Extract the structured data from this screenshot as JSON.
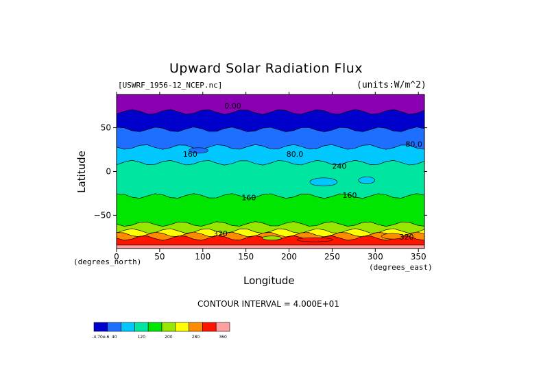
{
  "chart_data": {
    "type": "heatmap",
    "title": "Upward Solar Radiation Flux",
    "source_label": "[USWRF_1956-12_NCEP.nc]",
    "units_label": "(units:W/m^2)",
    "xlabel": "Longitude",
    "ylabel": "Latitude",
    "x_unit_label": "(degrees_east)",
    "y_unit_label": "(degrees_north)",
    "xlim": [
      0,
      357
    ],
    "ylim": [
      -88,
      88
    ],
    "xticks": [
      0,
      50,
      100,
      150,
      200,
      250,
      300,
      350
    ],
    "yticks": [
      50,
      0,
      -50
    ],
    "contour_interval_text": "CONTOUR INTERVAL = 4.000E+01",
    "contour_labels": [
      {
        "text": "0.00",
        "lon": 125,
        "lat": 72
      },
      {
        "text": "80.0",
        "lon": 335,
        "lat": 28
      },
      {
        "text": "80.0",
        "lon": 197,
        "lat": 17
      },
      {
        "text": "160",
        "lon": 77,
        "lat": 17
      },
      {
        "text": "160",
        "lon": 145,
        "lat": -33
      },
      {
        "text": "160",
        "lon": 262,
        "lat": -30
      },
      {
        "text": "240",
        "lon": 250,
        "lat": 3
      },
      {
        "text": "320",
        "lon": 112,
        "lat": -74
      },
      {
        "text": "320",
        "lon": 328,
        "lat": -78
      }
    ],
    "colorbar": {
      "colors": [
        "#0000cc",
        "#1e6eff",
        "#00c8ff",
        "#00e6a0",
        "#00e600",
        "#96e600",
        "#ffff00",
        "#ff8c00",
        "#ff1400",
        "#ffa0a0"
      ],
      "tick_labels": [
        "-4.70e-6",
        "40",
        "120",
        "200",
        "280",
        "360"
      ]
    },
    "bands": [
      {
        "lat_top": 88,
        "lat_bottom": 68,
        "color": "#8c00b4",
        "value": "0"
      },
      {
        "lat_top": 68,
        "lat_bottom": 48,
        "color": "#0000cc",
        "value": "0-40"
      },
      {
        "lat_top": 48,
        "lat_bottom": 28,
        "color": "#1e6eff",
        "value": "40-80"
      },
      {
        "lat_top": 28,
        "lat_bottom": 10,
        "color": "#00c8ff",
        "value": "80-120"
      },
      {
        "lat_top": 10,
        "lat_bottom": -28,
        "color": "#00e6a0",
        "value": "120-160"
      },
      {
        "lat_top": -28,
        "lat_bottom": -60,
        "color": "#00e600",
        "value": "160-200"
      },
      {
        "lat_top": -60,
        "lat_bottom": -68,
        "color": "#96e600",
        "value": "200-240"
      },
      {
        "lat_top": -68,
        "lat_bottom": -72,
        "color": "#ffff00",
        "value": "240-280"
      },
      {
        "lat_top": -72,
        "lat_bottom": -76,
        "color": "#ff8c00",
        "value": "280-320"
      },
      {
        "lat_top": -76,
        "lat_bottom": -84,
        "color": "#ff1400",
        "value": "320-360"
      },
      {
        "lat_top": -84,
        "lat_bottom": -88,
        "color": "#ffa0a0",
        "value": ">360"
      }
    ]
  }
}
